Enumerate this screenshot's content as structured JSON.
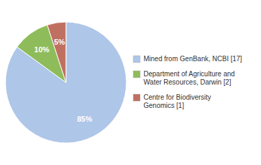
{
  "chart_data": {
    "type": "pie",
    "categories": [
      "Mined from GenBank, NCBI [17]",
      "Department of Agriculture and\nWater Resources, Darwin [2]",
      "Centre for Biodiversity\nGenomics [1]"
    ],
    "values": [
      85,
      10,
      5
    ],
    "value_labels": [
      "85%",
      "10%",
      "5%"
    ],
    "colors": [
      "#aec6e8",
      "#8fbc5a",
      "#c07060"
    ],
    "data_labels": true,
    "legend": "right"
  }
}
